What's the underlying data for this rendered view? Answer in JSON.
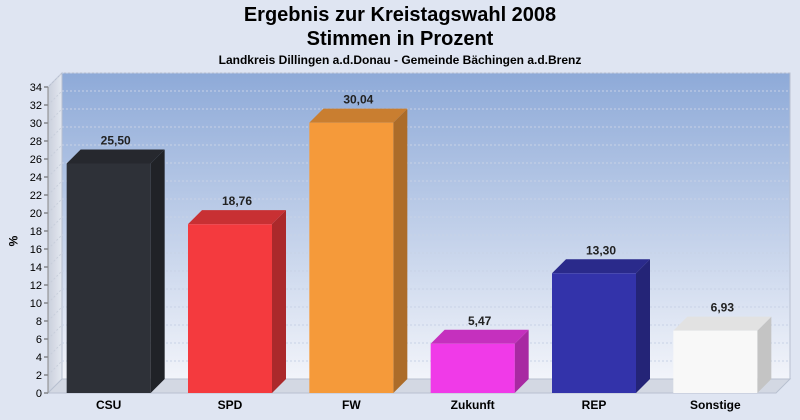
{
  "chart_data": {
    "type": "bar",
    "title": "Ergebnis zur Kreistagswahl 2008",
    "title_line2": "Stimmen in Prozent",
    "subtitle": "Landkreis Dillingen a.d.Donau - Gemeinde Bächingen a.d.Brenz",
    "ylabel": "%",
    "xlabel": "",
    "ylim": [
      0,
      34
    ],
    "ytick_step": 2,
    "grid": true,
    "categories": [
      "CSU",
      "SPD",
      "FW",
      "Zukunft",
      "REP",
      "Sonstige"
    ],
    "values": [
      25.5,
      18.76,
      30.04,
      5.47,
      13.3,
      6.93
    ],
    "value_labels": [
      "25,50",
      "18,76",
      "30,04",
      "5,47",
      "13,30",
      "6,93"
    ],
    "colors": [
      "#2e3138",
      "#f43a3e",
      "#f59a3a",
      "#f03ae8",
      "#3333aa",
      "#f8f8f8"
    ]
  }
}
